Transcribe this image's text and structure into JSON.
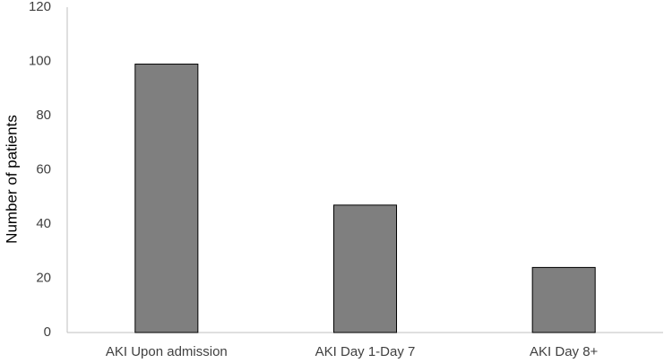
{
  "chart_data": {
    "type": "bar",
    "y_label": "Number of patients",
    "categories": [
      "AKI Upon admission",
      "AKI Day 1-Day 7",
      "AKI Day 8+"
    ],
    "values": [
      99,
      47,
      24
    ],
    "color": "#7f7f7f",
    "ylim": [
      0,
      120
    ],
    "yticks": [
      0,
      20,
      40,
      60,
      80,
      100,
      120
    ],
    "grid": false
  }
}
